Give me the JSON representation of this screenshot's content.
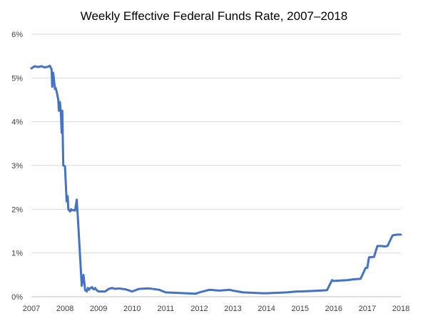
{
  "chart_data": {
    "type": "line",
    "title": "Weekly Effective Federal Funds Rate, 2007–2018",
    "xlabel": "",
    "ylabel": "",
    "x_range": [
      2007,
      2018
    ],
    "ylim": [
      0,
      6
    ],
    "y_ticks": [
      0,
      1,
      2,
      3,
      4,
      5,
      6
    ],
    "y_tick_labels": [
      "0%",
      "1%",
      "2%",
      "3%",
      "4%",
      "5%",
      "6%"
    ],
    "x_ticks": [
      2007,
      2008,
      2009,
      2010,
      2011,
      2012,
      2013,
      2014,
      2015,
      2016,
      2017,
      2018
    ],
    "x_tick_labels": [
      "2007",
      "2008",
      "2009",
      "2010",
      "2011",
      "2012",
      "2013",
      "2014",
      "2015",
      "2016",
      "2017",
      "2018"
    ],
    "grid": true,
    "legend": "none",
    "color": "#4472c4",
    "series": [
      {
        "values_unit": "percent",
        "x": [
          2007.0,
          2007.1,
          2007.2,
          2007.3,
          2007.4,
          2007.5,
          2007.55,
          2007.6,
          2007.62,
          2007.65,
          2007.7,
          2007.72,
          2007.75,
          2007.8,
          2007.82,
          2007.85,
          2007.88,
          2007.9,
          2007.92,
          2007.95,
          2007.98,
          2008.0,
          2008.05,
          2008.08,
          2008.1,
          2008.12,
          2008.15,
          2008.18,
          2008.2,
          2008.22,
          2008.25,
          2008.3,
          2008.35,
          2008.4,
          2008.45,
          2008.5,
          2008.55,
          2008.58,
          2008.6,
          2008.62,
          2008.65,
          2008.68,
          2008.7,
          2008.72,
          2008.75,
          2008.78,
          2008.8,
          2008.85,
          2008.88,
          2008.9,
          2008.93,
          2008.96,
          2009.0,
          2009.1,
          2009.2,
          2009.3,
          2009.4,
          2009.5,
          2009.6,
          2009.8,
          2010.0,
          2010.2,
          2010.5,
          2010.8,
          2011.0,
          2011.3,
          2011.6,
          2011.9,
          2012.0,
          2012.3,
          2012.6,
          2012.9,
          2013.0,
          2013.3,
          2013.6,
          2013.9,
          2014.0,
          2014.3,
          2014.6,
          2014.9,
          2015.0,
          2015.3,
          2015.6,
          2015.8,
          2015.95,
          2016.0,
          2016.2,
          2016.4,
          2016.6,
          2016.8,
          2016.95,
          2017.0,
          2017.05,
          2017.15,
          2017.2,
          2017.3,
          2017.45,
          2017.5,
          2017.6,
          2017.75,
          2017.8,
          2017.9,
          2018.0
        ],
        "values": [
          5.22,
          5.27,
          5.25,
          5.27,
          5.24,
          5.26,
          5.28,
          5.2,
          4.8,
          5.12,
          4.75,
          4.78,
          4.7,
          4.5,
          4.25,
          4.45,
          4.2,
          3.75,
          4.25,
          3.0,
          2.99,
          2.98,
          2.18,
          2.3,
          2.0,
          1.98,
          1.95,
          2.0,
          1.98,
          1.98,
          1.98,
          1.97,
          2.22,
          1.6,
          0.9,
          0.25,
          0.5,
          0.3,
          0.15,
          0.14,
          0.12,
          0.2,
          0.18,
          0.16,
          0.2,
          0.2,
          0.22,
          0.17,
          0.18,
          0.2,
          0.16,
          0.14,
          0.12,
          0.12,
          0.12,
          0.18,
          0.2,
          0.18,
          0.19,
          0.17,
          0.12,
          0.18,
          0.19,
          0.16,
          0.1,
          0.09,
          0.08,
          0.07,
          0.1,
          0.16,
          0.14,
          0.16,
          0.14,
          0.1,
          0.09,
          0.08,
          0.08,
          0.09,
          0.1,
          0.12,
          0.12,
          0.13,
          0.14,
          0.15,
          0.38,
          0.36,
          0.37,
          0.38,
          0.4,
          0.41,
          0.66,
          0.66,
          0.9,
          0.91,
          0.91,
          1.16,
          1.16,
          1.15,
          1.16,
          1.4,
          1.41,
          1.42,
          1.42
        ]
      }
    ]
  }
}
